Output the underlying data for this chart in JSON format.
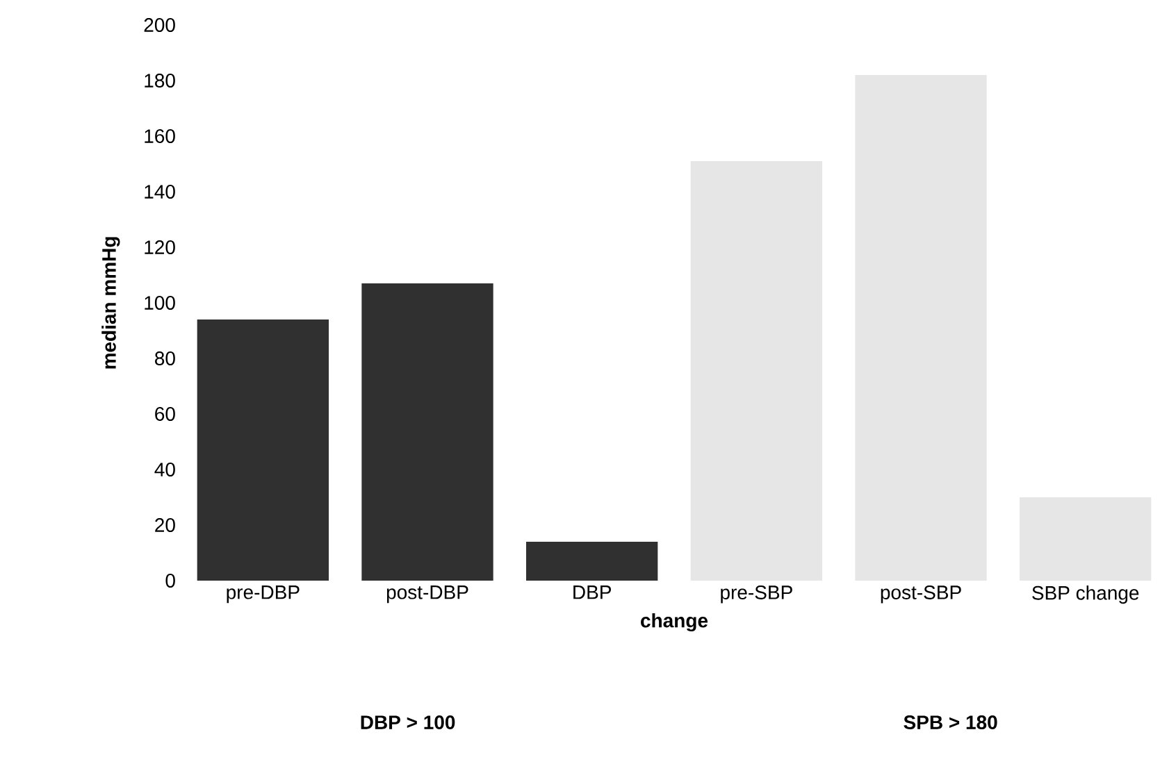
{
  "chart_data": {
    "type": "bar",
    "ylabel": "median mmHg",
    "xlabel": "change",
    "categories": [
      "pre-DBP",
      "post-DBP",
      "DBP",
      "pre-SBP",
      "post-SBP",
      "SBP change"
    ],
    "values": [
      94,
      107,
      14,
      151,
      182,
      30
    ],
    "colors": [
      "#303030",
      "#303030",
      "#303030",
      "#e6e6e6",
      "#e6e6e6",
      "#e6e6e6"
    ],
    "ylim": [
      0,
      200
    ],
    "yticks": [
      0,
      20,
      40,
      60,
      80,
      100,
      120,
      140,
      160,
      180,
      200
    ],
    "annotations": [
      "DBP > 100",
      "SPB > 180"
    ]
  }
}
